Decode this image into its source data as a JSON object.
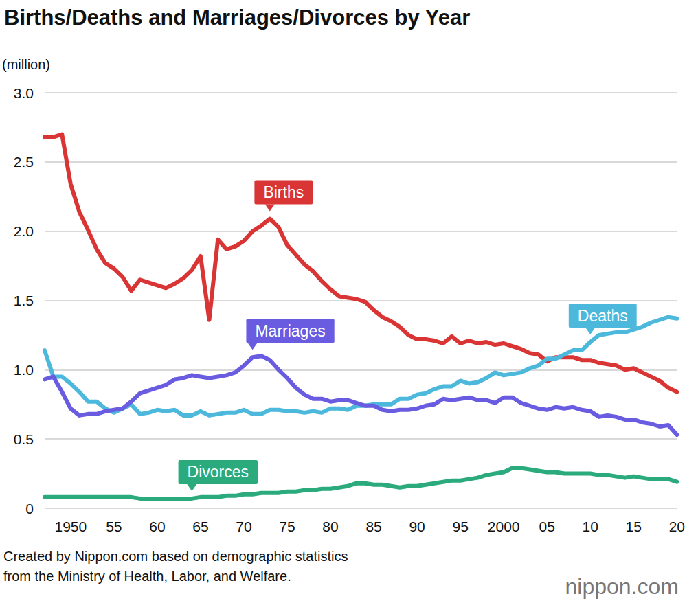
{
  "chart_data": {
    "type": "line",
    "title": "Births/Deaths and Marriages/Divorces by Year",
    "y_unit_label": "(million)",
    "source": [
      "Created by Nippon.com based on demographic statistics",
      "from the Ministry of Health, Labor, and Welfare."
    ],
    "logo": "nippon.com",
    "categories": [
      null,
      null,
      null,
      "1950",
      null,
      null,
      null,
      null,
      "55",
      null,
      null,
      null,
      null,
      "60",
      null,
      null,
      null,
      null,
      "65",
      null,
      null,
      null,
      null,
      "70",
      null,
      null,
      null,
      null,
      "75",
      null,
      null,
      null,
      null,
      "80",
      null,
      null,
      null,
      null,
      "85",
      null,
      null,
      null,
      null,
      "90",
      null,
      null,
      null,
      null,
      "95",
      null,
      null,
      null,
      null,
      "2000",
      null,
      null,
      null,
      null,
      "05",
      null,
      null,
      null,
      null,
      "10",
      null,
      null,
      null,
      null,
      "15",
      null,
      null,
      null,
      null,
      "20"
    ],
    "series": [
      {
        "name": "Births",
        "color": "#d93535",
        "values": [
          2.68,
          2.68,
          2.7,
          2.34,
          2.14,
          2.01,
          1.87,
          1.77,
          1.73,
          1.67,
          1.57,
          1.65,
          1.63,
          1.61,
          1.59,
          1.62,
          1.66,
          1.72,
          1.82,
          1.36,
          1.94,
          1.87,
          1.89,
          1.93,
          2.0,
          2.04,
          2.09,
          2.03,
          1.9,
          1.83,
          1.76,
          1.71,
          1.64,
          1.58,
          1.53,
          1.52,
          1.51,
          1.49,
          1.43,
          1.38,
          1.35,
          1.31,
          1.25,
          1.22,
          1.22,
          1.21,
          1.19,
          1.24,
          1.19,
          1.21,
          1.19,
          1.2,
          1.18,
          1.19,
          1.17,
          1.15,
          1.12,
          1.11,
          1.06,
          1.09,
          1.09,
          1.09,
          1.07,
          1.07,
          1.05,
          1.04,
          1.03,
          1.0,
          1.01,
          0.98,
          0.95,
          0.92,
          0.87,
          0.84
        ]
      },
      {
        "name": "Deaths",
        "color": "#4cb8dc",
        "values": [
          1.14,
          0.95,
          0.95,
          0.9,
          0.84,
          0.77,
          0.77,
          0.72,
          0.69,
          0.72,
          0.75,
          0.68,
          0.69,
          0.71,
          0.7,
          0.71,
          0.67,
          0.67,
          0.7,
          0.67,
          0.68,
          0.69,
          0.69,
          0.71,
          0.68,
          0.68,
          0.71,
          0.71,
          0.7,
          0.7,
          0.69,
          0.7,
          0.69,
          0.72,
          0.72,
          0.71,
          0.74,
          0.74,
          0.75,
          0.75,
          0.75,
          0.79,
          0.79,
          0.82,
          0.83,
          0.86,
          0.88,
          0.88,
          0.92,
          0.9,
          0.91,
          0.94,
          0.98,
          0.96,
          0.97,
          0.98,
          1.01,
          1.03,
          1.08,
          1.08,
          1.11,
          1.14,
          1.14,
          1.2,
          1.25,
          1.26,
          1.27,
          1.27,
          1.29,
          1.31,
          1.34,
          1.36,
          1.38,
          1.37
        ]
      },
      {
        "name": "Marriages",
        "color": "#6a5ce0",
        "values": [
          0.93,
          0.95,
          0.84,
          0.72,
          0.67,
          0.68,
          0.68,
          0.7,
          0.71,
          0.72,
          0.77,
          0.83,
          0.85,
          0.87,
          0.89,
          0.93,
          0.94,
          0.96,
          0.95,
          0.94,
          0.95,
          0.96,
          0.98,
          1.03,
          1.09,
          1.1,
          1.07,
          1.0,
          0.94,
          0.87,
          0.82,
          0.79,
          0.79,
          0.77,
          0.78,
          0.78,
          0.76,
          0.74,
          0.74,
          0.71,
          0.7,
          0.71,
          0.71,
          0.72,
          0.74,
          0.75,
          0.79,
          0.78,
          0.79,
          0.8,
          0.78,
          0.78,
          0.76,
          0.8,
          0.8,
          0.76,
          0.74,
          0.72,
          0.71,
          0.73,
          0.72,
          0.73,
          0.71,
          0.7,
          0.66,
          0.67,
          0.66,
          0.64,
          0.64,
          0.62,
          0.61,
          0.59,
          0.6,
          0.53
        ]
      },
      {
        "name": "Divorces",
        "color": "#2aaa7d",
        "values": [
          0.08,
          0.08,
          0.08,
          0.08,
          0.08,
          0.08,
          0.08,
          0.08,
          0.08,
          0.08,
          0.08,
          0.07,
          0.07,
          0.07,
          0.07,
          0.07,
          0.07,
          0.07,
          0.08,
          0.08,
          0.08,
          0.09,
          0.09,
          0.1,
          0.1,
          0.11,
          0.11,
          0.11,
          0.12,
          0.12,
          0.13,
          0.13,
          0.14,
          0.14,
          0.15,
          0.16,
          0.18,
          0.18,
          0.17,
          0.17,
          0.16,
          0.15,
          0.16,
          0.16,
          0.17,
          0.18,
          0.19,
          0.2,
          0.2,
          0.21,
          0.22,
          0.24,
          0.25,
          0.26,
          0.29,
          0.29,
          0.28,
          0.27,
          0.26,
          0.26,
          0.25,
          0.25,
          0.25,
          0.25,
          0.24,
          0.24,
          0.23,
          0.22,
          0.23,
          0.22,
          0.21,
          0.21,
          0.21,
          0.19
        ]
      }
    ],
    "ylim": [
      0,
      3
    ],
    "yticks": [
      0,
      0.5,
      {
        "value": 1,
        "label": "1.0"
      },
      1.5,
      {
        "value": 2,
        "label": "2.0"
      },
      2.5,
      {
        "value": 3,
        "label": "3.0"
      }
    ],
    "grid": true
  }
}
